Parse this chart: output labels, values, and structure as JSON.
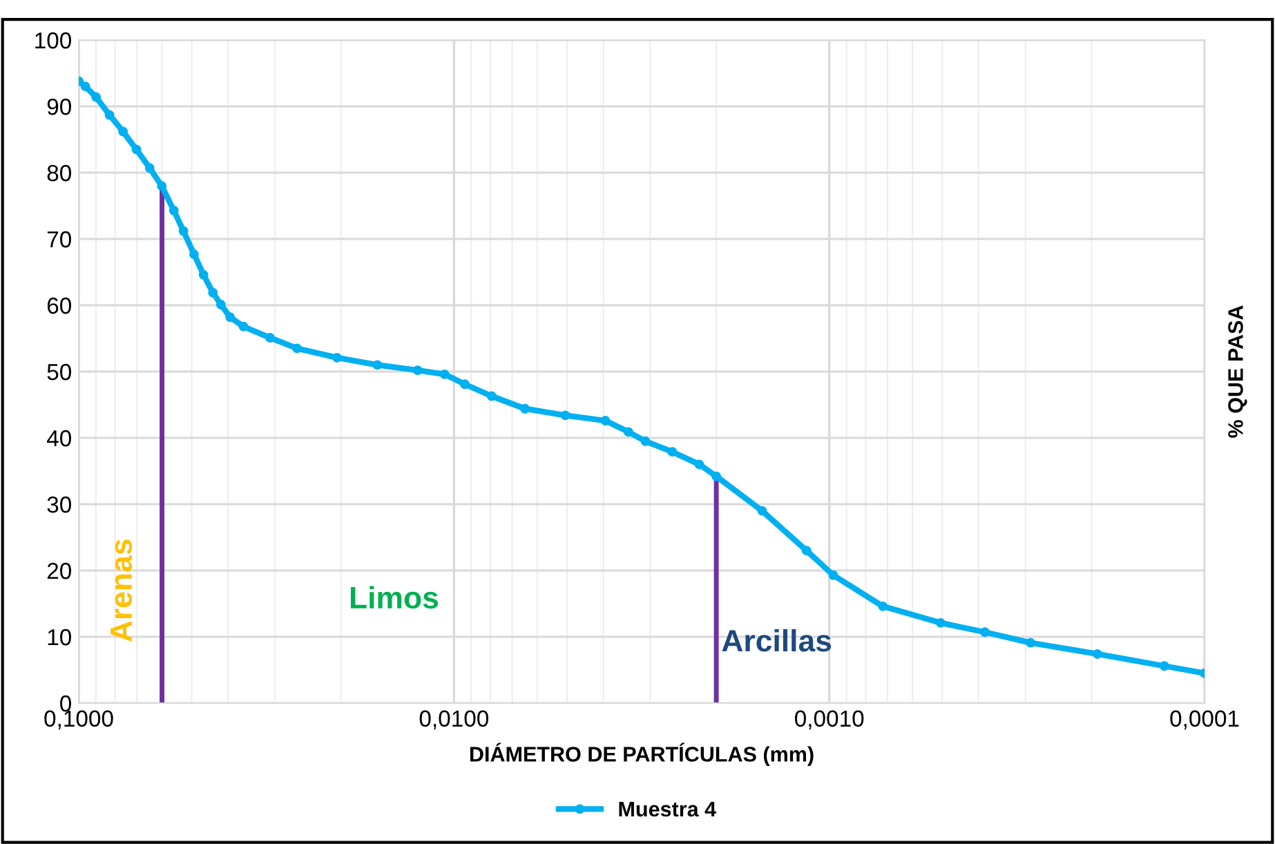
{
  "chart_data": {
    "type": "line",
    "xlabel": "DIÁMETRO DE PARTÍCULAS (mm)",
    "ylabel": "% QUE PASA",
    "log": "x",
    "xlim": [
      0.1,
      0.0001
    ],
    "xticks": [
      {
        "value": 0.1,
        "label": "0,1000"
      },
      {
        "value": 0.01,
        "label": "0,0100"
      },
      {
        "value": 0.001,
        "label": "0,0010"
      },
      {
        "value": 0.0001,
        "label": "0,0001"
      }
    ],
    "ylim": [
      0,
      100
    ],
    "yticks": [
      0,
      10,
      20,
      30,
      40,
      50,
      60,
      70,
      80,
      90,
      100
    ],
    "grid": true,
    "legend": "bottom",
    "marker": "circle",
    "line_style": "solid",
    "series": [
      {
        "name": "Muestra 4",
        "color": "#00b0f0",
        "x": [
          0.1,
          0.096,
          0.0899,
          0.0828,
          0.0762,
          0.0702,
          0.0647,
          0.0601,
          0.0558,
          0.0526,
          0.0493,
          0.0465,
          0.0439,
          0.0418,
          0.0395,
          0.0364,
          0.0309,
          0.0262,
          0.0205,
          0.016,
          0.0125,
          0.0106,
          0.00936,
          0.00794,
          0.00647,
          0.00505,
          0.00395,
          0.00343,
          0.00309,
          0.00262,
          0.00222,
          0.002,
          0.00151,
          0.00115,
          0.000976,
          0.00072,
          0.000505,
          0.000385,
          0.000291,
          0.000193,
          0.000128,
          0.0001
        ],
        "values": [
          93.8,
          93.0,
          91.4,
          88.7,
          86.2,
          83.5,
          80.7,
          78.0,
          74.3,
          71.2,
          67.7,
          64.6,
          61.9,
          60.1,
          58.2,
          56.8,
          55.1,
          53.5,
          52.1,
          51.0,
          50.2,
          49.6,
          48.1,
          46.3,
          44.4,
          43.4,
          42.6,
          40.9,
          39.5,
          37.9,
          36.0,
          34.2,
          29.0,
          23.0,
          19.3,
          14.6,
          12.1,
          10.7,
          9.1,
          7.4,
          5.6,
          4.5
        ]
      },
      {
        "type": "line",
        "color": "#7030a0",
        "x": [
          0.06,
          0.06
        ],
        "values": [
          0,
          77.4
        ],
        "marker": "none"
      },
      {
        "type": "line",
        "color": "#7030a0",
        "x": [
          0.002,
          0.002
        ],
        "values": [
          0,
          34.2
        ],
        "marker": "none"
      }
    ],
    "annotations": [
      "Arenas",
      "Limos",
      "Arcillas"
    ]
  }
}
